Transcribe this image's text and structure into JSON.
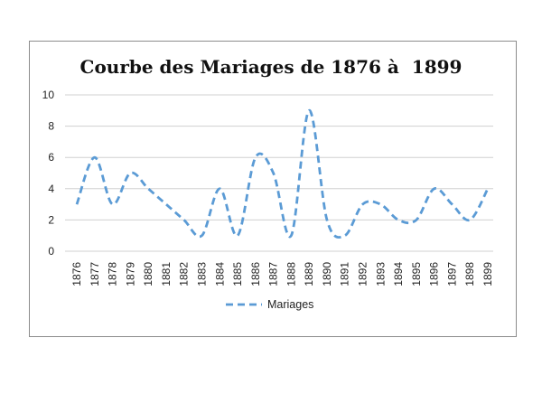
{
  "chart_data": {
    "type": "line",
    "title": "Courbe des Mariages de 1876 à  1899",
    "xlabel": "",
    "ylabel": "",
    "categories": [
      "1876",
      "1877",
      "1878",
      "1879",
      "1880",
      "1881",
      "1882",
      "1883",
      "1884",
      "1885",
      "1886",
      "1887",
      "1888",
      "1889",
      "1890",
      "1891",
      "1892",
      "1893",
      "1894",
      "1895",
      "1896",
      "1897",
      "1898",
      "1899"
    ],
    "series": [
      {
        "name": "Mariages",
        "values": [
          3,
          6,
          3,
          5,
          4,
          3,
          2,
          1,
          4,
          1,
          6,
          5,
          1,
          9,
          2,
          1,
          3,
          3,
          2,
          2,
          4,
          3,
          2,
          4
        ],
        "color": "#5b9bd5",
        "line_style": "dashed",
        "smooth": true
      }
    ],
    "ylim": [
      0,
      10
    ],
    "yticks": [
      0,
      2,
      4,
      6,
      8,
      10
    ],
    "grid": "horizontal",
    "legend": "bottom"
  }
}
